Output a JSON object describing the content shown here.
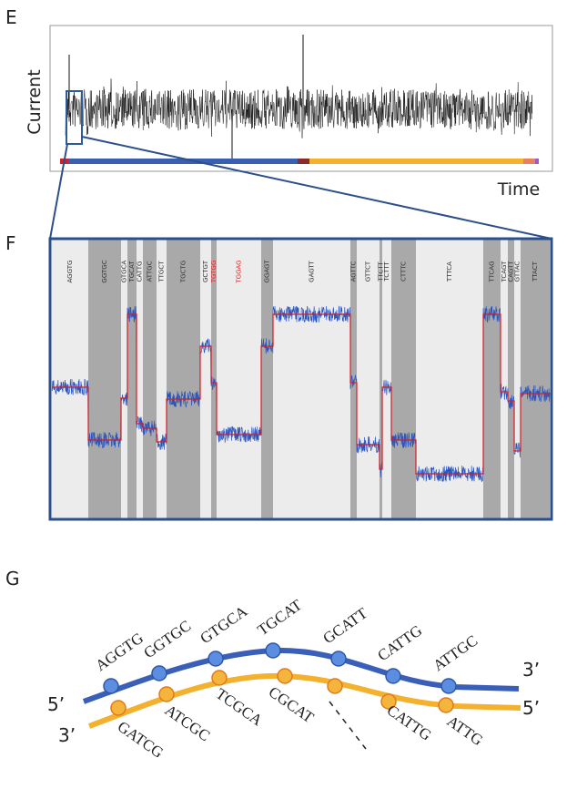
{
  "panel_e": {
    "label": "E",
    "y_label": "Current",
    "x_label": "Time"
  },
  "panel_f": {
    "label": "F",
    "kmers": [
      {
        "text": "AGGTG",
        "color": "#333333"
      },
      {
        "text": "GGTGC",
        "color": "#333333"
      },
      {
        "text": "GTGCA",
        "color": "#333333"
      },
      {
        "text": "TGCAT",
        "color": "#333333"
      },
      {
        "text": "CATTG",
        "color": "#333333"
      },
      {
        "text": "ATTGC",
        "color": "#333333"
      },
      {
        "text": "TTGCT",
        "color": "#333333"
      },
      {
        "text": "TGCTG",
        "color": "#333333"
      },
      {
        "text": "GCTGT",
        "color": "#333333"
      },
      {
        "text": "TGTGG",
        "color": "#e8262b"
      },
      {
        "text": "TGGAG",
        "color": "#e8262b"
      },
      {
        "text": "GGAGT",
        "color": "#333333"
      },
      {
        "text": "GAGTT",
        "color": "#333333"
      },
      {
        "text": "AGTTC",
        "color": "#333333"
      },
      {
        "text": "GTTCT",
        "color": "#333333"
      },
      {
        "text": "TTCTT",
        "color": "#333333"
      },
      {
        "text": "TCTTT",
        "color": "#333333"
      },
      {
        "text": "CTTTC",
        "color": "#333333"
      },
      {
        "text": "TTTCA",
        "color": "#333333"
      },
      {
        "text": "TTCAG",
        "color": "#333333"
      },
      {
        "text": "TCAGT",
        "color": "#333333"
      },
      {
        "text": "CAGTT",
        "color": "#333333"
      },
      {
        "text": "GTTAC",
        "color": "#333333"
      },
      {
        "text": "TTACT",
        "color": "#333333"
      }
    ]
  },
  "panel_g": {
    "label": "G",
    "top_strand": {
      "left_end": "5’",
      "right_end": "3’",
      "kmers": [
        "AGGTG",
        "GGTGC",
        "GTGCA",
        "TGCAT",
        "GCATT",
        "CATTG",
        "ATTGC"
      ]
    },
    "bottom_strand": {
      "left_end": "3’",
      "right_end": "5’",
      "kmers": [
        "GATCG",
        "ATCGC",
        "TCGCA",
        "CGCAT",
        "CATTG",
        "ATTG"
      ]
    }
  }
}
